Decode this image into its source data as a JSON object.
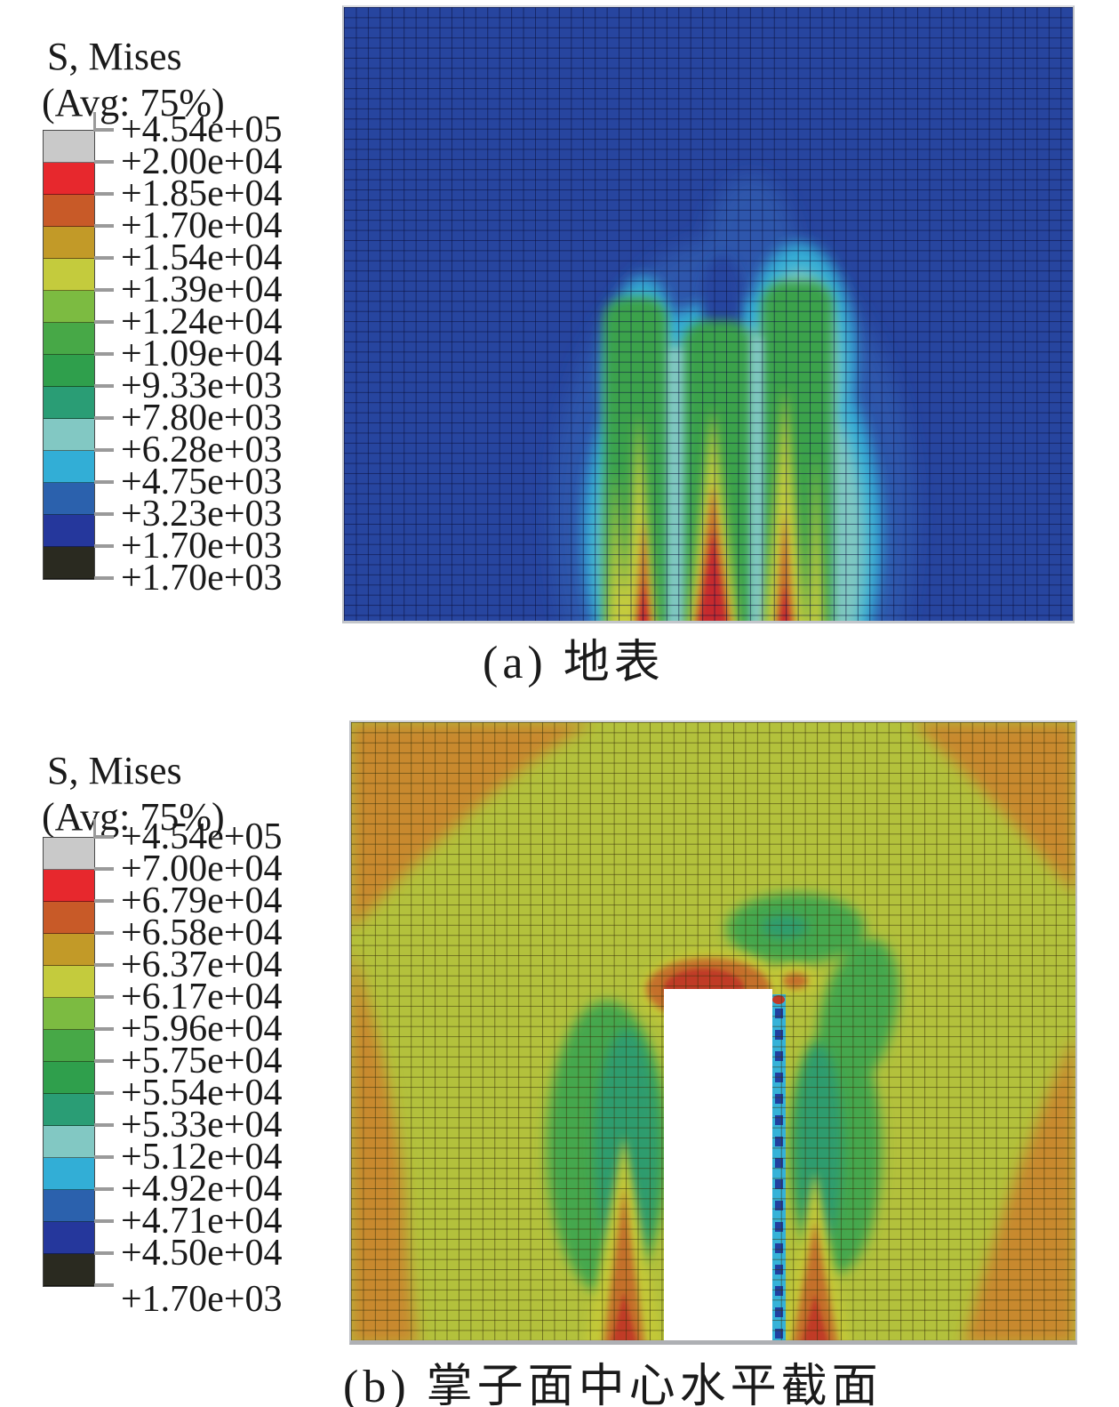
{
  "panels": [
    {
      "id": "a",
      "caption": "(a) 地表",
      "legend": {
        "title": "S, Mises",
        "subtitle": "(Avg: 75%)",
        "levels": [
          "+4.54e+05",
          "+2.00e+04",
          "+1.85e+04",
          "+1.70e+04",
          "+1.54e+04",
          "+1.39e+04",
          "+1.24e+04",
          "+1.09e+04",
          "+9.33e+03",
          "+7.80e+03",
          "+6.28e+03",
          "+4.75e+03",
          "+3.23e+03",
          "+1.70e+03",
          "+1.70e+03"
        ],
        "band_colors": [
          "#c9c9c9",
          "#e7282d",
          "#c85a28",
          "#c29a28",
          "#c4cb3d",
          "#7cbb41",
          "#47a847",
          "#2f9f4c",
          "#2a9d75",
          "#82c8c3",
          "#32aed6",
          "#2b61ad",
          "#25379c",
          "#2a2a20"
        ],
        "last_label_offset": 0
      },
      "field": {
        "bg": "#27459f",
        "halo": "#2e57ac",
        "cyan": "#35add5",
        "pale": "#7fc7c1",
        "green": "#3aa24c",
        "yellow": "#c4cb3d",
        "orange": "#c86e2b",
        "red": "#c62a2e"
      }
    },
    {
      "id": "b",
      "caption": "(b) 掌子面中心水平截面",
      "legend": {
        "title": "S, Mises",
        "subtitle": "(Avg: 75%)",
        "levels": [
          "+4.54e+05",
          "+7.00e+04",
          "+6.79e+04",
          "+6.58e+04",
          "+6.37e+04",
          "+6.17e+04",
          "+5.96e+04",
          "+5.75e+04",
          "+5.54e+04",
          "+5.33e+04",
          "+5.12e+04",
          "+4.92e+04",
          "+4.71e+04",
          "+4.50e+04",
          "+1.70e+03"
        ],
        "band_colors": [
          "#c9c9c9",
          "#e7282d",
          "#c85a28",
          "#c29a28",
          "#c4cb3d",
          "#7cbb41",
          "#47a847",
          "#2f9f4c",
          "#2a9d75",
          "#82c8c3",
          "#32aed6",
          "#2b61ad",
          "#25379c",
          "#2a2a20"
        ],
        "last_label_offset": 16
      },
      "field": {
        "bg": "#b3c13c",
        "orange": "#c8892e",
        "green": "#44a74d",
        "teal": "#2d9c6e",
        "yellow": "#c3c838",
        "orange2": "#c4702b",
        "red": "#c03a28",
        "cyan": "#35b2d8",
        "navy": "#2040a0",
        "white": "#ffffff"
      }
    }
  ],
  "chart_data": [
    {
      "type": "heatmap",
      "subtype": "fem-von-mises-contour",
      "title": "S, Mises",
      "subtitle": "(Avg: 75%)",
      "caption": "(a) 地表",
      "legend_levels_text": [
        "+4.54e+05",
        "+2.00e+04",
        "+1.85e+04",
        "+1.70e+04",
        "+1.54e+04",
        "+1.39e+04",
        "+1.24e+04",
        "+1.09e+04",
        "+9.33e+03",
        "+7.80e+03",
        "+6.28e+03",
        "+4.75e+03",
        "+3.23e+03",
        "+1.70e+03",
        "+1.70e+03"
      ],
      "legend_levels": [
        454000,
        20000,
        18500,
        17000,
        15400,
        13900,
        12400,
        10900,
        9330,
        7800,
        6280,
        4750,
        3230,
        1700,
        1700
      ],
      "band_colors": [
        "#c9c9c9",
        "#e7282d",
        "#c85a28",
        "#c29a28",
        "#c4cb3d",
        "#7cbb41",
        "#47a847",
        "#2f9f4c",
        "#2a9d75",
        "#82c8c3",
        "#32aed6",
        "#2b61ad",
        "#25379c",
        "#2a2a20"
      ],
      "legend_position": "left",
      "grid": "fine quadrilateral mesh over whole field",
      "description": "Ground-surface Von Mises stress contour: uniform navy-blue low-stress field; three green finger-shaped high-stress columns rise from bottom center inside a cyan/teal arch halo; yellow cores inside each finger; central red flame-shaped peak at bottom center with two small orange-red spikes left and right."
    },
    {
      "type": "heatmap",
      "subtype": "fem-von-mises-contour",
      "title": "S, Mises",
      "subtitle": "(Avg: 75%)",
      "caption": "(b) 掌子面中心水平截面",
      "legend_levels_text": [
        "+4.54e+05",
        "+7.00e+04",
        "+6.79e+04",
        "+6.58e+04",
        "+6.37e+04",
        "+6.17e+04",
        "+5.96e+04",
        "+5.75e+04",
        "+5.54e+04",
        "+5.33e+04",
        "+5.12e+04",
        "+4.92e+04",
        "+4.71e+04",
        "+4.50e+04",
        "+1.70e+03"
      ],
      "legend_levels": [
        454000,
        70000,
        67900,
        65800,
        63700,
        61700,
        59600,
        57500,
        55400,
        53300,
        51200,
        49200,
        47100,
        45000,
        1700
      ],
      "band_colors": [
        "#c9c9c9",
        "#e7282d",
        "#c85a28",
        "#c29a28",
        "#c4cb3d",
        "#7cbb41",
        "#47a847",
        "#2f9f4c",
        "#2a9d75",
        "#82c8c3",
        "#32aed6",
        "#2b61ad",
        "#25379c",
        "#2a2a20"
      ],
      "legend_position": "left",
      "grid": "fine quadrilateral mesh over whole field",
      "description": "Horizontal section through tunnel face center: yellow-green mid-stress field with orange corner/edge wedges; white unmeshed rectangular excavation at bottom center; red stress concentration on top of the excavation; two green low-stress kidneys flanking it; cyan stripe with navy dashes along excavation right wall; orange-red flames at the bottom beside the excavation."
    }
  ]
}
